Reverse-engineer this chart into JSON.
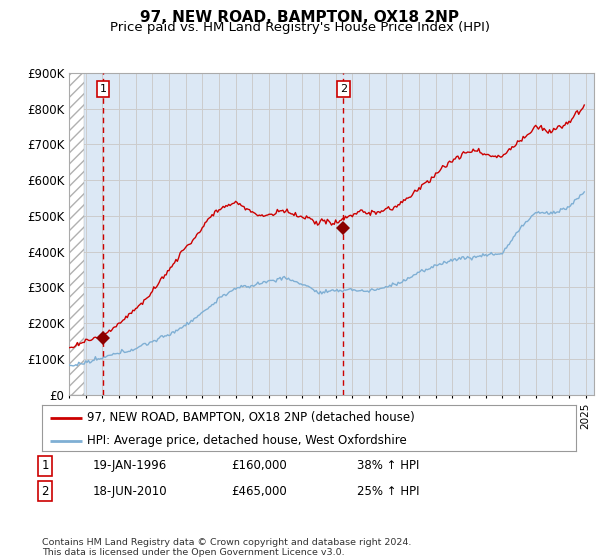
{
  "title": "97, NEW ROAD, BAMPTON, OX18 2NP",
  "subtitle": "Price paid vs. HM Land Registry's House Price Index (HPI)",
  "ylim": [
    0,
    900000
  ],
  "yticks": [
    0,
    100000,
    200000,
    300000,
    400000,
    500000,
    600000,
    700000,
    800000,
    900000
  ],
  "ytick_labels": [
    "£0",
    "£100K",
    "£200K",
    "£300K",
    "£400K",
    "£500K",
    "£600K",
    "£700K",
    "£800K",
    "£900K"
  ],
  "xlim_start": 1994.0,
  "xlim_end": 2025.5,
  "grid_color": "#cccccc",
  "bg_color": "#dce8f5",
  "red_line_color": "#cc0000",
  "blue_line_color": "#7fafd4",
  "transaction1_x": 1996.05,
  "transaction1_y": 160000,
  "transaction2_x": 2010.46,
  "transaction2_y": 465000,
  "marker_color": "#8b0000",
  "vline_color": "#cc0000",
  "legend_line1": "97, NEW ROAD, BAMPTON, OX18 2NP (detached house)",
  "legend_line2": "HPI: Average price, detached house, West Oxfordshire",
  "table_row1_num": "1",
  "table_row1_date": "19-JAN-1996",
  "table_row1_price": "£160,000",
  "table_row1_hpi": "38% ↑ HPI",
  "table_row2_num": "2",
  "table_row2_date": "18-JUN-2010",
  "table_row2_price": "£465,000",
  "table_row2_hpi": "25% ↑ HPI",
  "footnote": "Contains HM Land Registry data © Crown copyright and database right 2024.\nThis data is licensed under the Open Government Licence v3.0.",
  "title_fontsize": 11,
  "subtitle_fontsize": 9.5
}
